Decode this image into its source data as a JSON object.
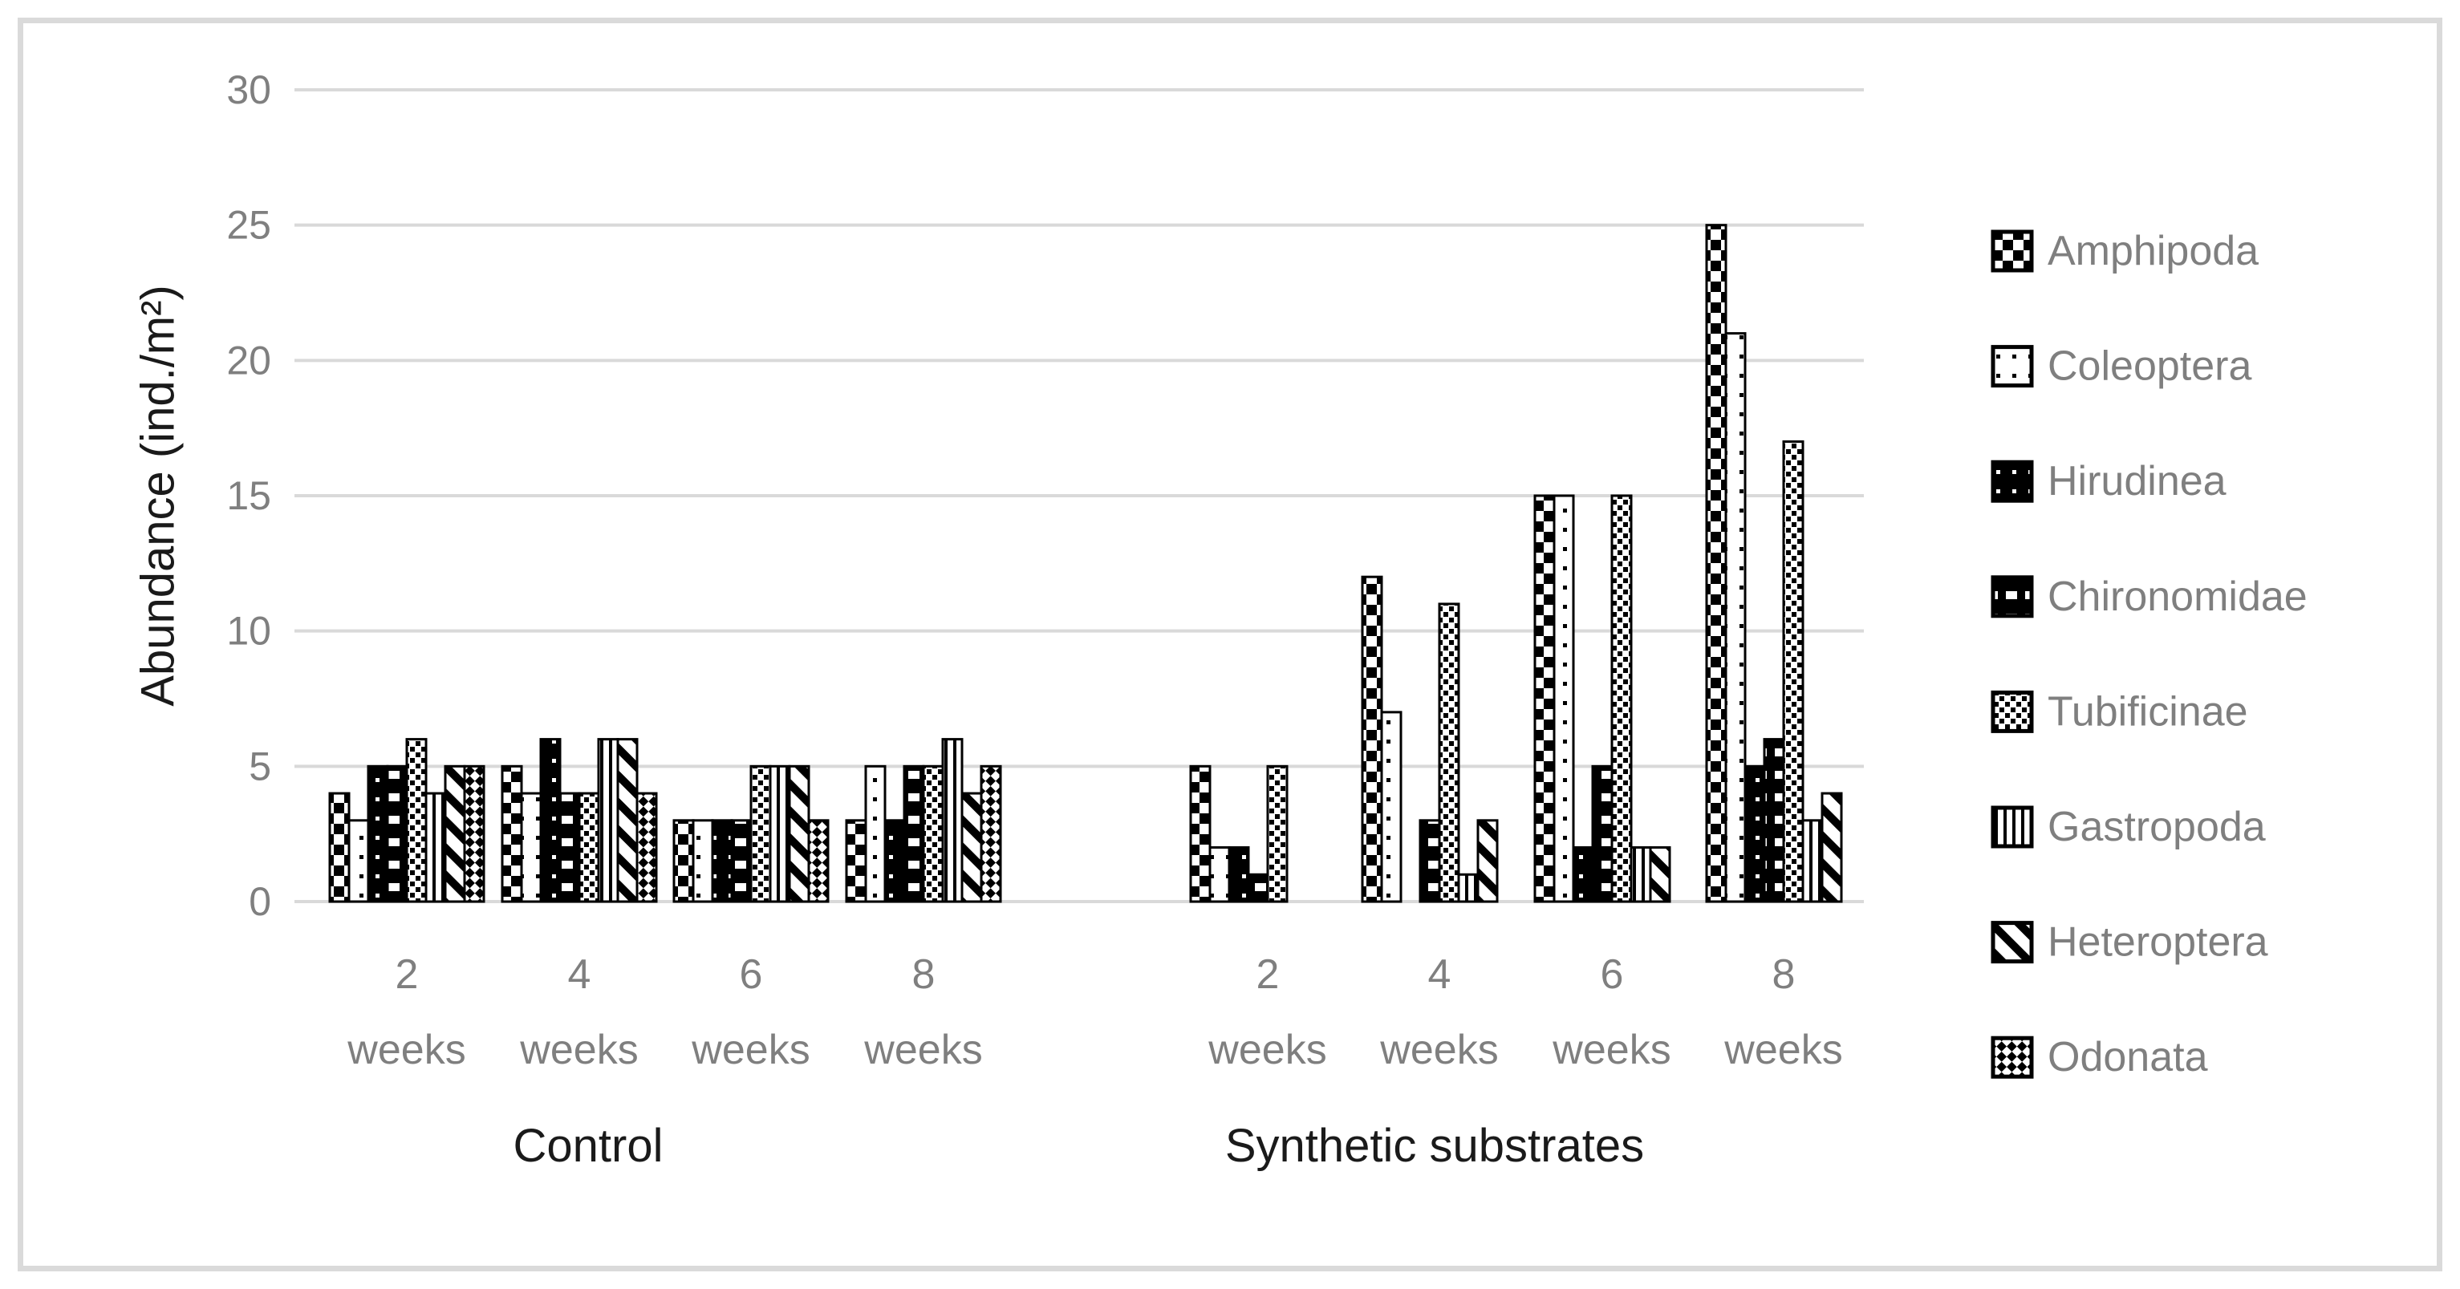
{
  "figure": {
    "y_axis_title": "Abundance (ind./m²)",
    "x_tick_word": "weeks",
    "section_labels": [
      "Control",
      "Synthetic substrates"
    ],
    "colors": {
      "grid": "#d9d9d9",
      "axis_line": "#d9d9d9",
      "tick_text": "#7f7f7f",
      "title_text": "#1a1a1a",
      "bar_fill_dark": "#000000",
      "bar_fill_light": "#ffffff",
      "frame_border": "#dadada"
    }
  },
  "chart_data": {
    "type": "bar",
    "title": "",
    "xlabel": "",
    "ylabel": "Abundance (ind./m²)",
    "ylim": [
      0,
      30
    ],
    "yticks": [
      0,
      5,
      10,
      15,
      20,
      25,
      30
    ],
    "grid": true,
    "legend_position": "right",
    "groups": [
      {
        "section": "Control",
        "categories": [
          "2 weeks",
          "4 weeks",
          "6 weeks",
          "8 weeks"
        ]
      },
      {
        "section": "Synthetic substrates",
        "categories": [
          "2 weeks",
          "4 weeks",
          "6 weeks",
          "8 weeks"
        ]
      }
    ],
    "series": [
      {
        "name": "Amphipoda",
        "pattern": "big-check",
        "control": [
          4,
          5,
          3,
          3
        ],
        "synthetic": [
          5,
          12,
          15,
          25
        ]
      },
      {
        "name": "Coleoptera",
        "pattern": "black-dots-on-white",
        "control": [
          3,
          4,
          3,
          5
        ],
        "synthetic": [
          2,
          7,
          15,
          21
        ]
      },
      {
        "name": "Hirudinea",
        "pattern": "white-dots-on-black",
        "control": [
          5,
          6,
          3,
          3
        ],
        "synthetic": [
          2,
          0,
          2,
          5
        ]
      },
      {
        "name": "Chironomidae",
        "pattern": "white-dash-on-black",
        "control": [
          5,
          4,
          3,
          5
        ],
        "synthetic": [
          1,
          3,
          5,
          6
        ]
      },
      {
        "name": "Tubificinae",
        "pattern": "small-diag-check",
        "control": [
          6,
          4,
          5,
          5
        ],
        "synthetic": [
          5,
          11,
          15,
          17
        ]
      },
      {
        "name": "Gastropoda",
        "pattern": "vertical-lines",
        "control": [
          4,
          6,
          5,
          6
        ],
        "synthetic": [
          0,
          1,
          2,
          3
        ]
      },
      {
        "name": "Heteroptera",
        "pattern": "diagonal-stripe",
        "control": [
          5,
          6,
          5,
          4
        ],
        "synthetic": [
          0,
          3,
          2,
          4
        ]
      },
      {
        "name": "Odonata",
        "pattern": "diagonal-check",
        "control": [
          5,
          4,
          3,
          5
        ],
        "synthetic": [
          0,
          0,
          0,
          0
        ]
      }
    ]
  }
}
